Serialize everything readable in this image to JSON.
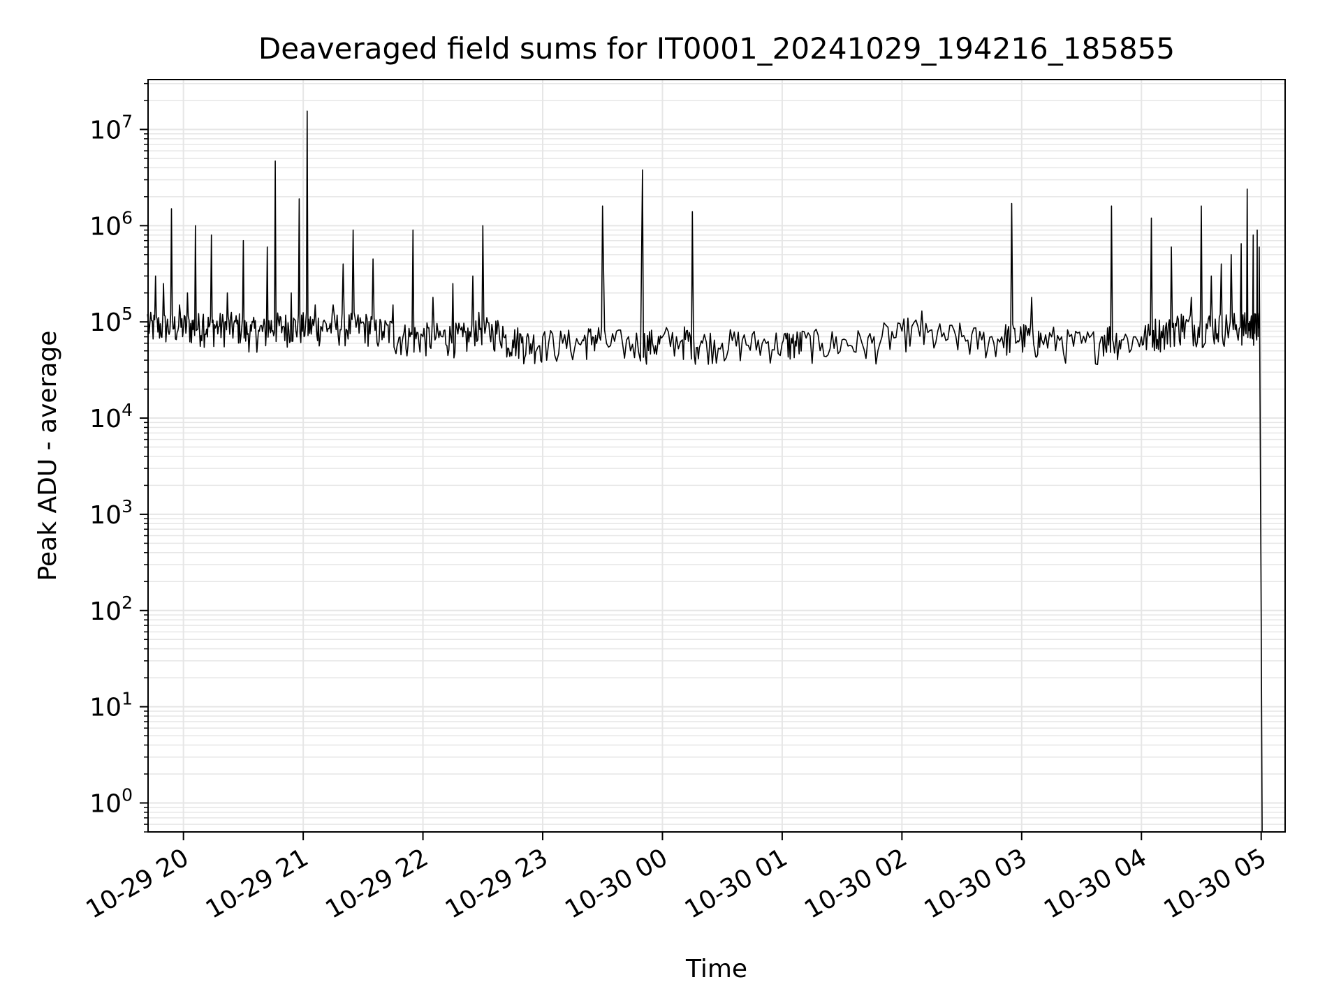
{
  "chart_data": {
    "type": "line",
    "title": "Deaveraged field sums for IT0001_20241029_194216_185855",
    "xlabel": "Time",
    "ylabel": "Peak ADU - average",
    "yscale": "log",
    "ylim": [
      0.5,
      33000000
    ],
    "xlim": [
      "2024-10-29 19:42:16",
      "2024-10-30 05:12:00"
    ],
    "grid": true,
    "grid_minor": true,
    "line_color": "#000000",
    "grid_color": "#e6e6e6",
    "x_ticks": [
      {
        "value": "2024-10-29 20:00",
        "label": "10-29 20"
      },
      {
        "value": "2024-10-29 21:00",
        "label": "10-29 21"
      },
      {
        "value": "2024-10-29 22:00",
        "label": "10-29 22"
      },
      {
        "value": "2024-10-29 23:00",
        "label": "10-29 23"
      },
      {
        "value": "2024-10-30 00:00",
        "label": "10-30 00"
      },
      {
        "value": "2024-10-30 01:00",
        "label": "10-30 01"
      },
      {
        "value": "2024-10-30 02:00",
        "label": "10-30 02"
      },
      {
        "value": "2024-10-30 03:00",
        "label": "10-30 03"
      },
      {
        "value": "2024-10-30 04:00",
        "label": "10-30 04"
      },
      {
        "value": "2024-10-30 05:00",
        "label": "10-30 05"
      }
    ],
    "y_ticks": [
      {
        "value": 1,
        "base": "10",
        "exp": "0"
      },
      {
        "value": 10,
        "base": "10",
        "exp": "1"
      },
      {
        "value": 100,
        "base": "10",
        "exp": "2"
      },
      {
        "value": 1000,
        "base": "10",
        "exp": "3"
      },
      {
        "value": 10000,
        "base": "10",
        "exp": "4"
      },
      {
        "value": 100000,
        "base": "10",
        "exp": "5"
      },
      {
        "value": 1000000,
        "base": "10",
        "exp": "6"
      },
      {
        "value": 10000000,
        "base": "10",
        "exp": "7"
      }
    ],
    "series": [
      {
        "x": [
          "2024-10-29 19:42",
          "2024-10-29 19:46",
          "2024-10-29 19:50",
          "2024-10-29 19:54",
          "2024-10-29 19:58",
          "2024-10-29 20:02",
          "2024-10-29 20:06",
          "2024-10-29 20:10",
          "2024-10-29 20:14",
          "2024-10-29 20:18",
          "2024-10-29 20:22",
          "2024-10-29 20:26",
          "2024-10-29 20:30",
          "2024-10-29 20:34",
          "2024-10-29 20:38",
          "2024-10-29 20:42",
          "2024-10-29 20:46",
          "2024-10-29 20:50",
          "2024-10-29 20:54",
          "2024-10-29 20:58",
          "2024-10-29 21:02",
          "2024-10-29 21:06",
          "2024-10-29 21:10",
          "2024-10-29 21:15",
          "2024-10-29 21:20",
          "2024-10-29 21:25",
          "2024-10-29 21:30",
          "2024-10-29 21:35",
          "2024-10-29 21:40",
          "2024-10-29 21:45",
          "2024-10-29 21:50",
          "2024-10-29 21:55",
          "2024-10-29 22:00",
          "2024-10-29 22:05",
          "2024-10-29 22:10",
          "2024-10-29 22:15",
          "2024-10-29 22:20",
          "2024-10-29 22:25",
          "2024-10-29 22:30",
          "2024-10-29 22:35",
          "2024-10-29 22:40",
          "2024-10-29 22:45",
          "2024-10-29 22:50",
          "2024-10-29 22:55",
          "2024-10-29 23:00",
          "2024-10-29 23:10",
          "2024-10-29 23:20",
          "2024-10-29 23:25",
          "2024-10-29 23:30",
          "2024-10-29 23:40",
          "2024-10-29 23:50",
          "2024-10-29 23:55",
          "2024-10-30 00:00",
          "2024-10-30 00:10",
          "2024-10-30 00:15",
          "2024-10-30 00:20",
          "2024-10-30 00:30",
          "2024-10-30 00:40",
          "2024-10-30 00:50",
          "2024-10-30 01:00",
          "2024-10-30 01:05",
          "2024-10-30 01:10",
          "2024-10-30 01:20",
          "2024-10-30 01:30",
          "2024-10-30 01:40",
          "2024-10-30 01:50",
          "2024-10-30 02:00",
          "2024-10-30 02:10",
          "2024-10-30 02:20",
          "2024-10-30 02:30",
          "2024-10-30 02:40",
          "2024-10-30 02:50",
          "2024-10-30 02:55",
          "2024-10-30 03:00",
          "2024-10-30 03:05",
          "2024-10-30 03:10",
          "2024-10-30 03:20",
          "2024-10-30 03:30",
          "2024-10-30 03:40",
          "2024-10-30 03:45",
          "2024-10-30 03:50",
          "2024-10-30 04:00",
          "2024-10-30 04:05",
          "2024-10-30 04:10",
          "2024-10-30 04:15",
          "2024-10-30 04:20",
          "2024-10-30 04:25",
          "2024-10-30 04:30",
          "2024-10-30 04:35",
          "2024-10-30 04:40",
          "2024-10-30 04:45",
          "2024-10-30 04:50",
          "2024-10-30 04:53",
          "2024-10-30 04:56",
          "2024-10-30 04:58",
          "2024-10-30 04:59",
          "2024-10-30 05:00",
          "2024-10-30 05:00:30"
        ],
        "y": [
          120000,
          300000,
          250000,
          1500000,
          150000,
          200000,
          1000000,
          120000,
          800000,
          90000,
          200000,
          100000,
          700000,
          80000,
          80000,
          600000,
          4700000,
          90000,
          200000,
          1900000,
          15500000,
          150000,
          100000,
          150000,
          400000,
          900000,
          100000,
          450000,
          80000,
          150000,
          70000,
          900000,
          70000,
          180000,
          70000,
          250000,
          70000,
          300000,
          1000000,
          80000,
          90000,
          65000,
          70000,
          60000,
          70000,
          60000,
          65000,
          70000,
          1600000,
          60000,
          3800000,
          60000,
          70000,
          65000,
          1400000,
          60000,
          60000,
          65000,
          60000,
          60000,
          60000,
          80000,
          60000,
          65000,
          60000,
          70000,
          80000,
          130000,
          70000,
          70000,
          65000,
          70000,
          1700000,
          70000,
          180000,
          65000,
          70000,
          60000,
          70000,
          1600000,
          65000,
          70000,
          1200000,
          80000,
          600000,
          120000,
          180000,
          1600000,
          300000,
          400000,
          500000,
          650000,
          2400000,
          800000,
          900000,
          600000,
          100,
          0.5
        ]
      }
    ]
  }
}
